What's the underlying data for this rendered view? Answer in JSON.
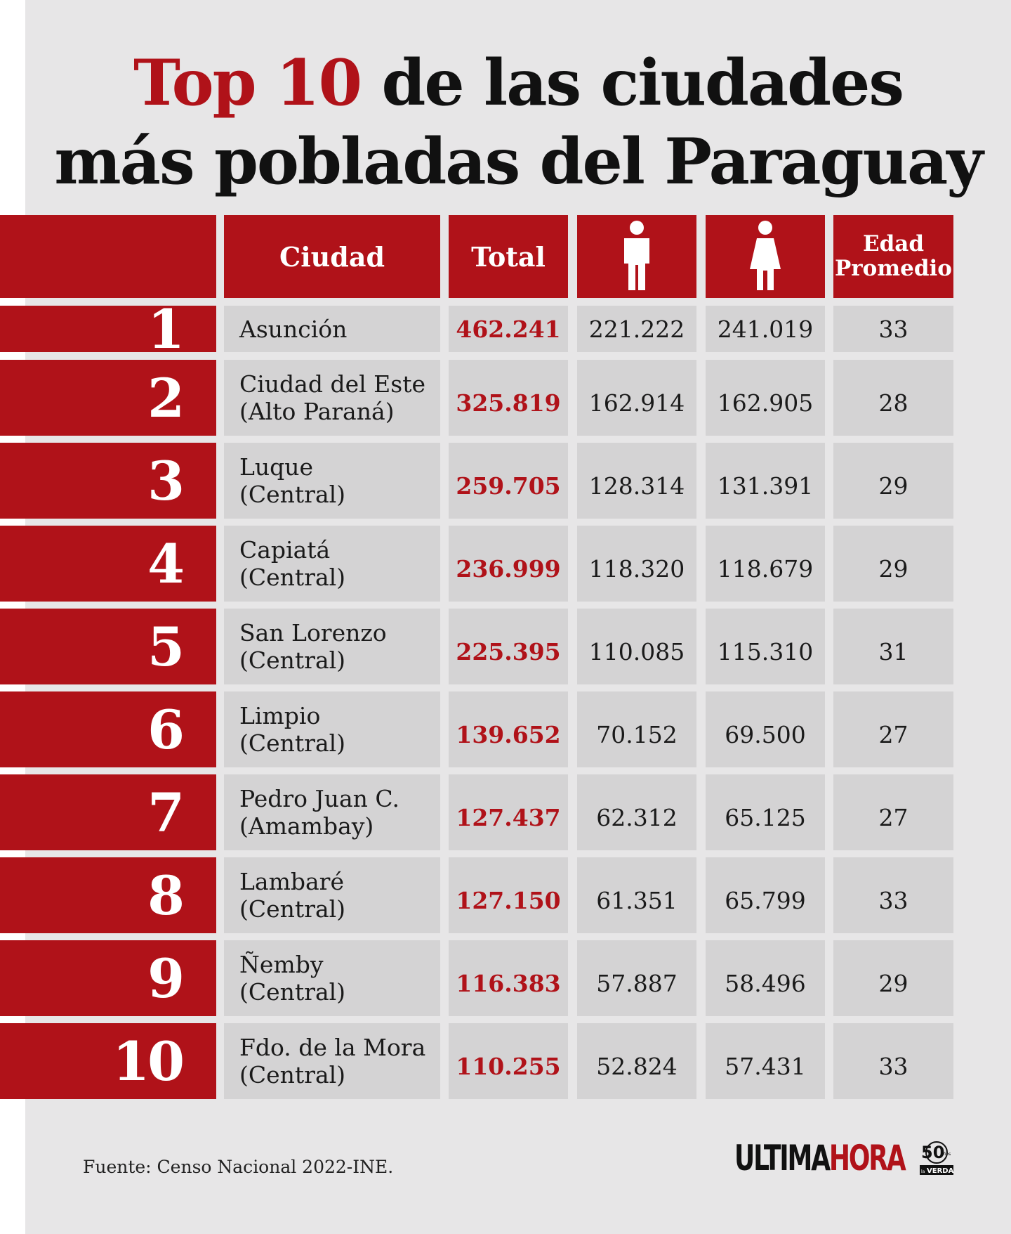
{
  "title": {
    "accent": "Top 10",
    "rest_line1": "de las ciudades",
    "line2": "más pobladas del Paraguay"
  },
  "headers": {
    "city": "Ciudad",
    "total": "Total",
    "men_icon": "male-icon",
    "women_icon": "female-icon",
    "age_line1": "Edad",
    "age_line2": "Promedio"
  },
  "rows": [
    {
      "rank": "1",
      "city1": "Asunción",
      "city2": "",
      "total": "462.241",
      "men": "221.222",
      "women": "241.019",
      "age": "33"
    },
    {
      "rank": "2",
      "city1": "Ciudad del Este",
      "city2": "(Alto Paraná)",
      "total": "325.819",
      "men": "162.914",
      "women": "162.905",
      "age": "28"
    },
    {
      "rank": "3",
      "city1": "Luque",
      "city2": "(Central)",
      "total": "259.705",
      "men": "128.314",
      "women": "131.391",
      "age": "29"
    },
    {
      "rank": "4",
      "city1": "Capiatá",
      "city2": "(Central)",
      "total": "236.999",
      "men": "118.320",
      "women": "118.679",
      "age": "29"
    },
    {
      "rank": "5",
      "city1": "San Lorenzo",
      "city2": "(Central)",
      "total": "225.395",
      "men": "110.085",
      "women": "115.310",
      "age": "31"
    },
    {
      "rank": "6",
      "city1": "Limpio",
      "city2": "(Central)",
      "total": "139.652",
      "men": "70.152",
      "women": "69.500",
      "age": "27"
    },
    {
      "rank": "7",
      "city1": "Pedro Juan C.",
      "city2": "(Amambay)",
      "total": "127.437",
      "men": "62.312",
      "women": "65.125",
      "age": "27"
    },
    {
      "rank": "8",
      "city1": "Lambaré",
      "city2": "(Central)",
      "total": "127.150",
      "men": "61.351",
      "women": "65.799",
      "age": "33"
    },
    {
      "rank": "9",
      "city1": "Ñemby",
      "city2": "(Central)",
      "total": "116.383",
      "men": "57.887",
      "women": "58.496",
      "age": "29"
    },
    {
      "rank": "10",
      "city1": "Fdo. de la Mora",
      "city2": "(Central)",
      "total": "110.255",
      "men": "52.824",
      "women": "57.431",
      "age": "33"
    }
  ],
  "source": "Fuente: Censo Nacional 2022-INE.",
  "logo": {
    "part1": "ULTIMA",
    "part2": "HORA",
    "badge_number": "50",
    "badge_small": "años",
    "badge_text": "VERDAD",
    "badge_prefix": "la"
  },
  "colors": {
    "accent": "#b01219",
    "panel": "#e7e6e7",
    "cell": "#d4d3d4"
  },
  "chart_data": {
    "type": "table",
    "title": "Top 10 de las ciudades más pobladas del Paraguay",
    "columns": [
      "",
      "Ciudad",
      "Total",
      "male-icon",
      "female-icon",
      "Edad Promedio"
    ],
    "rows": [
      [
        "1",
        "Asunción",
        462241,
        221222,
        241019,
        33
      ],
      [
        "2",
        "Ciudad del Este (Alto Paraná)",
        325819,
        162914,
        162905,
        28
      ],
      [
        "3",
        "Luque (Central)",
        259705,
        128314,
        131391,
        29
      ],
      [
        "4",
        "Capiatá (Central)",
        236999,
        118320,
        118679,
        29
      ],
      [
        "5",
        "San Lorenzo (Central)",
        225395,
        110085,
        115310,
        31
      ],
      [
        "6",
        "Limpio (Central)",
        139652,
        70152,
        69500,
        27
      ],
      [
        "7",
        "Pedro Juan C. (Amambay)",
        127437,
        62312,
        65125,
        27
      ],
      [
        "8",
        "Lambaré (Central)",
        127150,
        61351,
        65799,
        33
      ],
      [
        "9",
        "Ñemby (Central)",
        116383,
        57887,
        58496,
        29
      ],
      [
        "10",
        "Fdo. de la Mora (Central)",
        110255,
        52824,
        57431,
        33
      ]
    ]
  }
}
